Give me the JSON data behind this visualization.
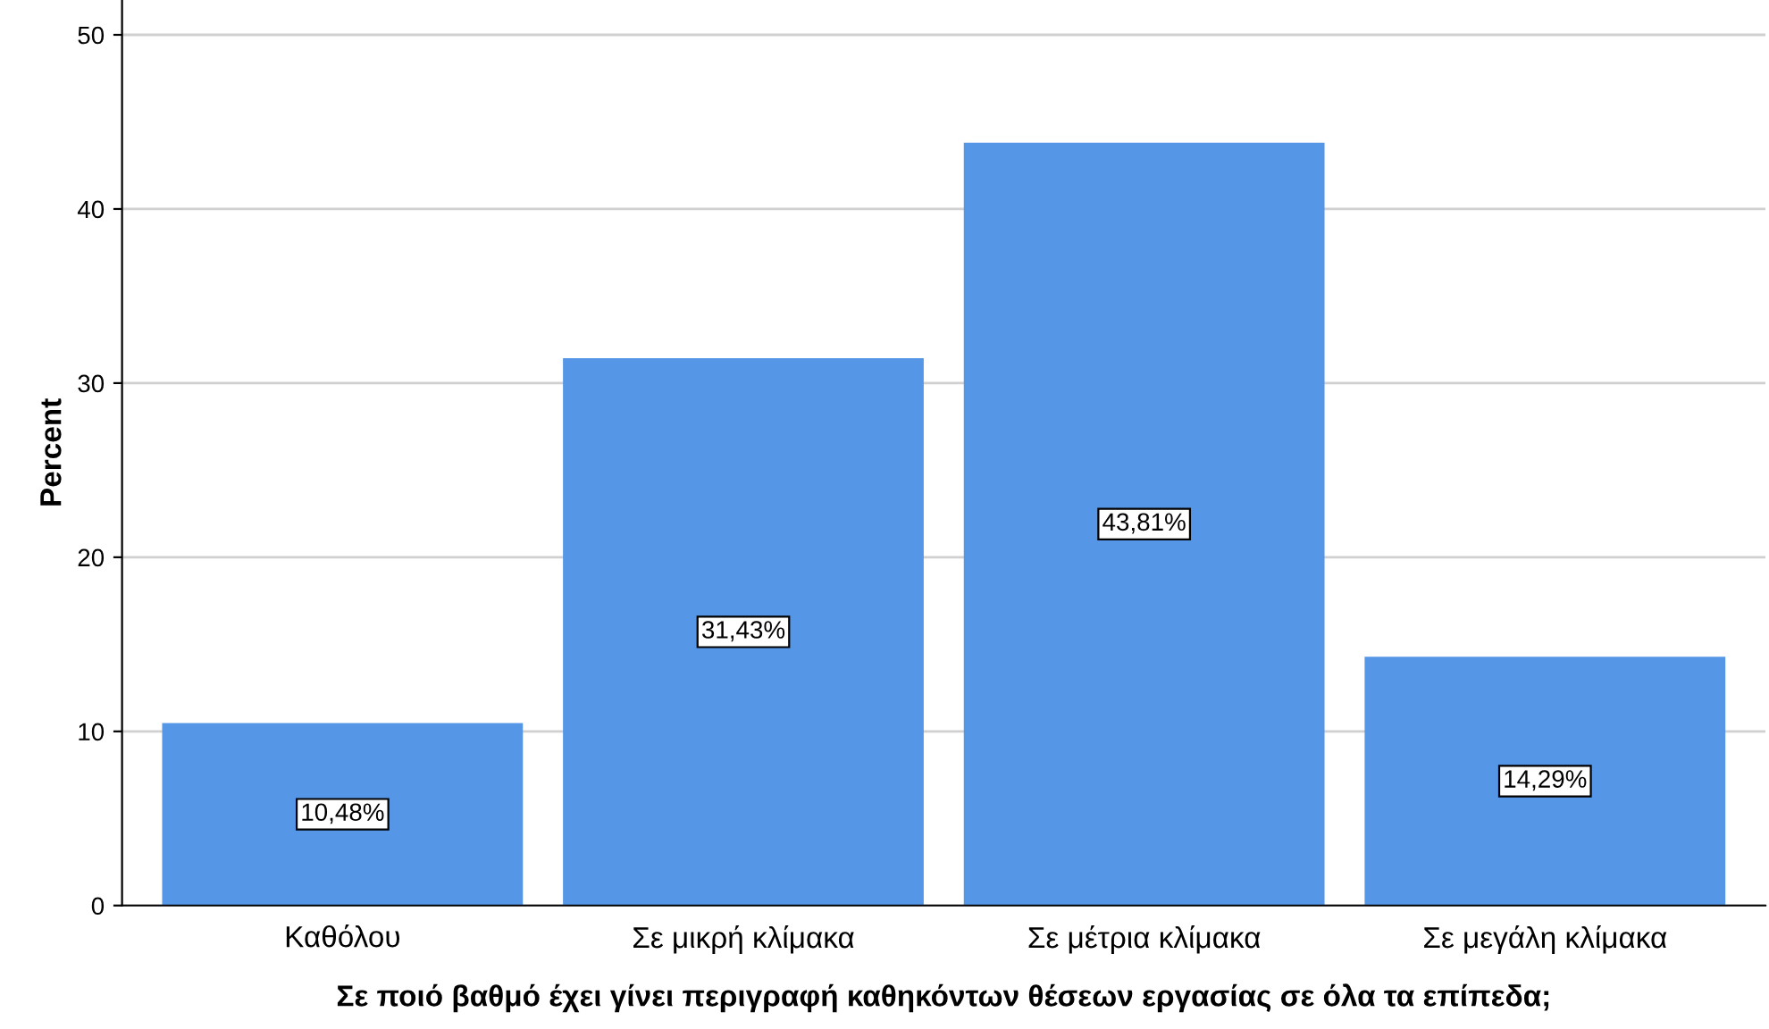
{
  "chart_data": {
    "type": "bar",
    "xlabel": "Σε ποιό βαθμό έχει γίνει περιγραφή καθηκόντων θέσεων εργασίας σε όλα τα επίπεδα;",
    "ylabel": "Percent",
    "categories": [
      "Καθόλου",
      "Σε μικρή κλίμακα",
      "Σε μέτρια κλίμακα",
      "Σε μεγάλη κλίμακα"
    ],
    "values": [
      10.48,
      31.43,
      43.81,
      14.29
    ],
    "value_labels": [
      "10,48%",
      "31,43%",
      "43,81%",
      "14,29%"
    ],
    "color": "#5596e6",
    "ylim": [
      0,
      52
    ],
    "yticks": [
      0,
      10,
      20,
      30,
      40,
      50
    ],
    "grid": "y"
  }
}
